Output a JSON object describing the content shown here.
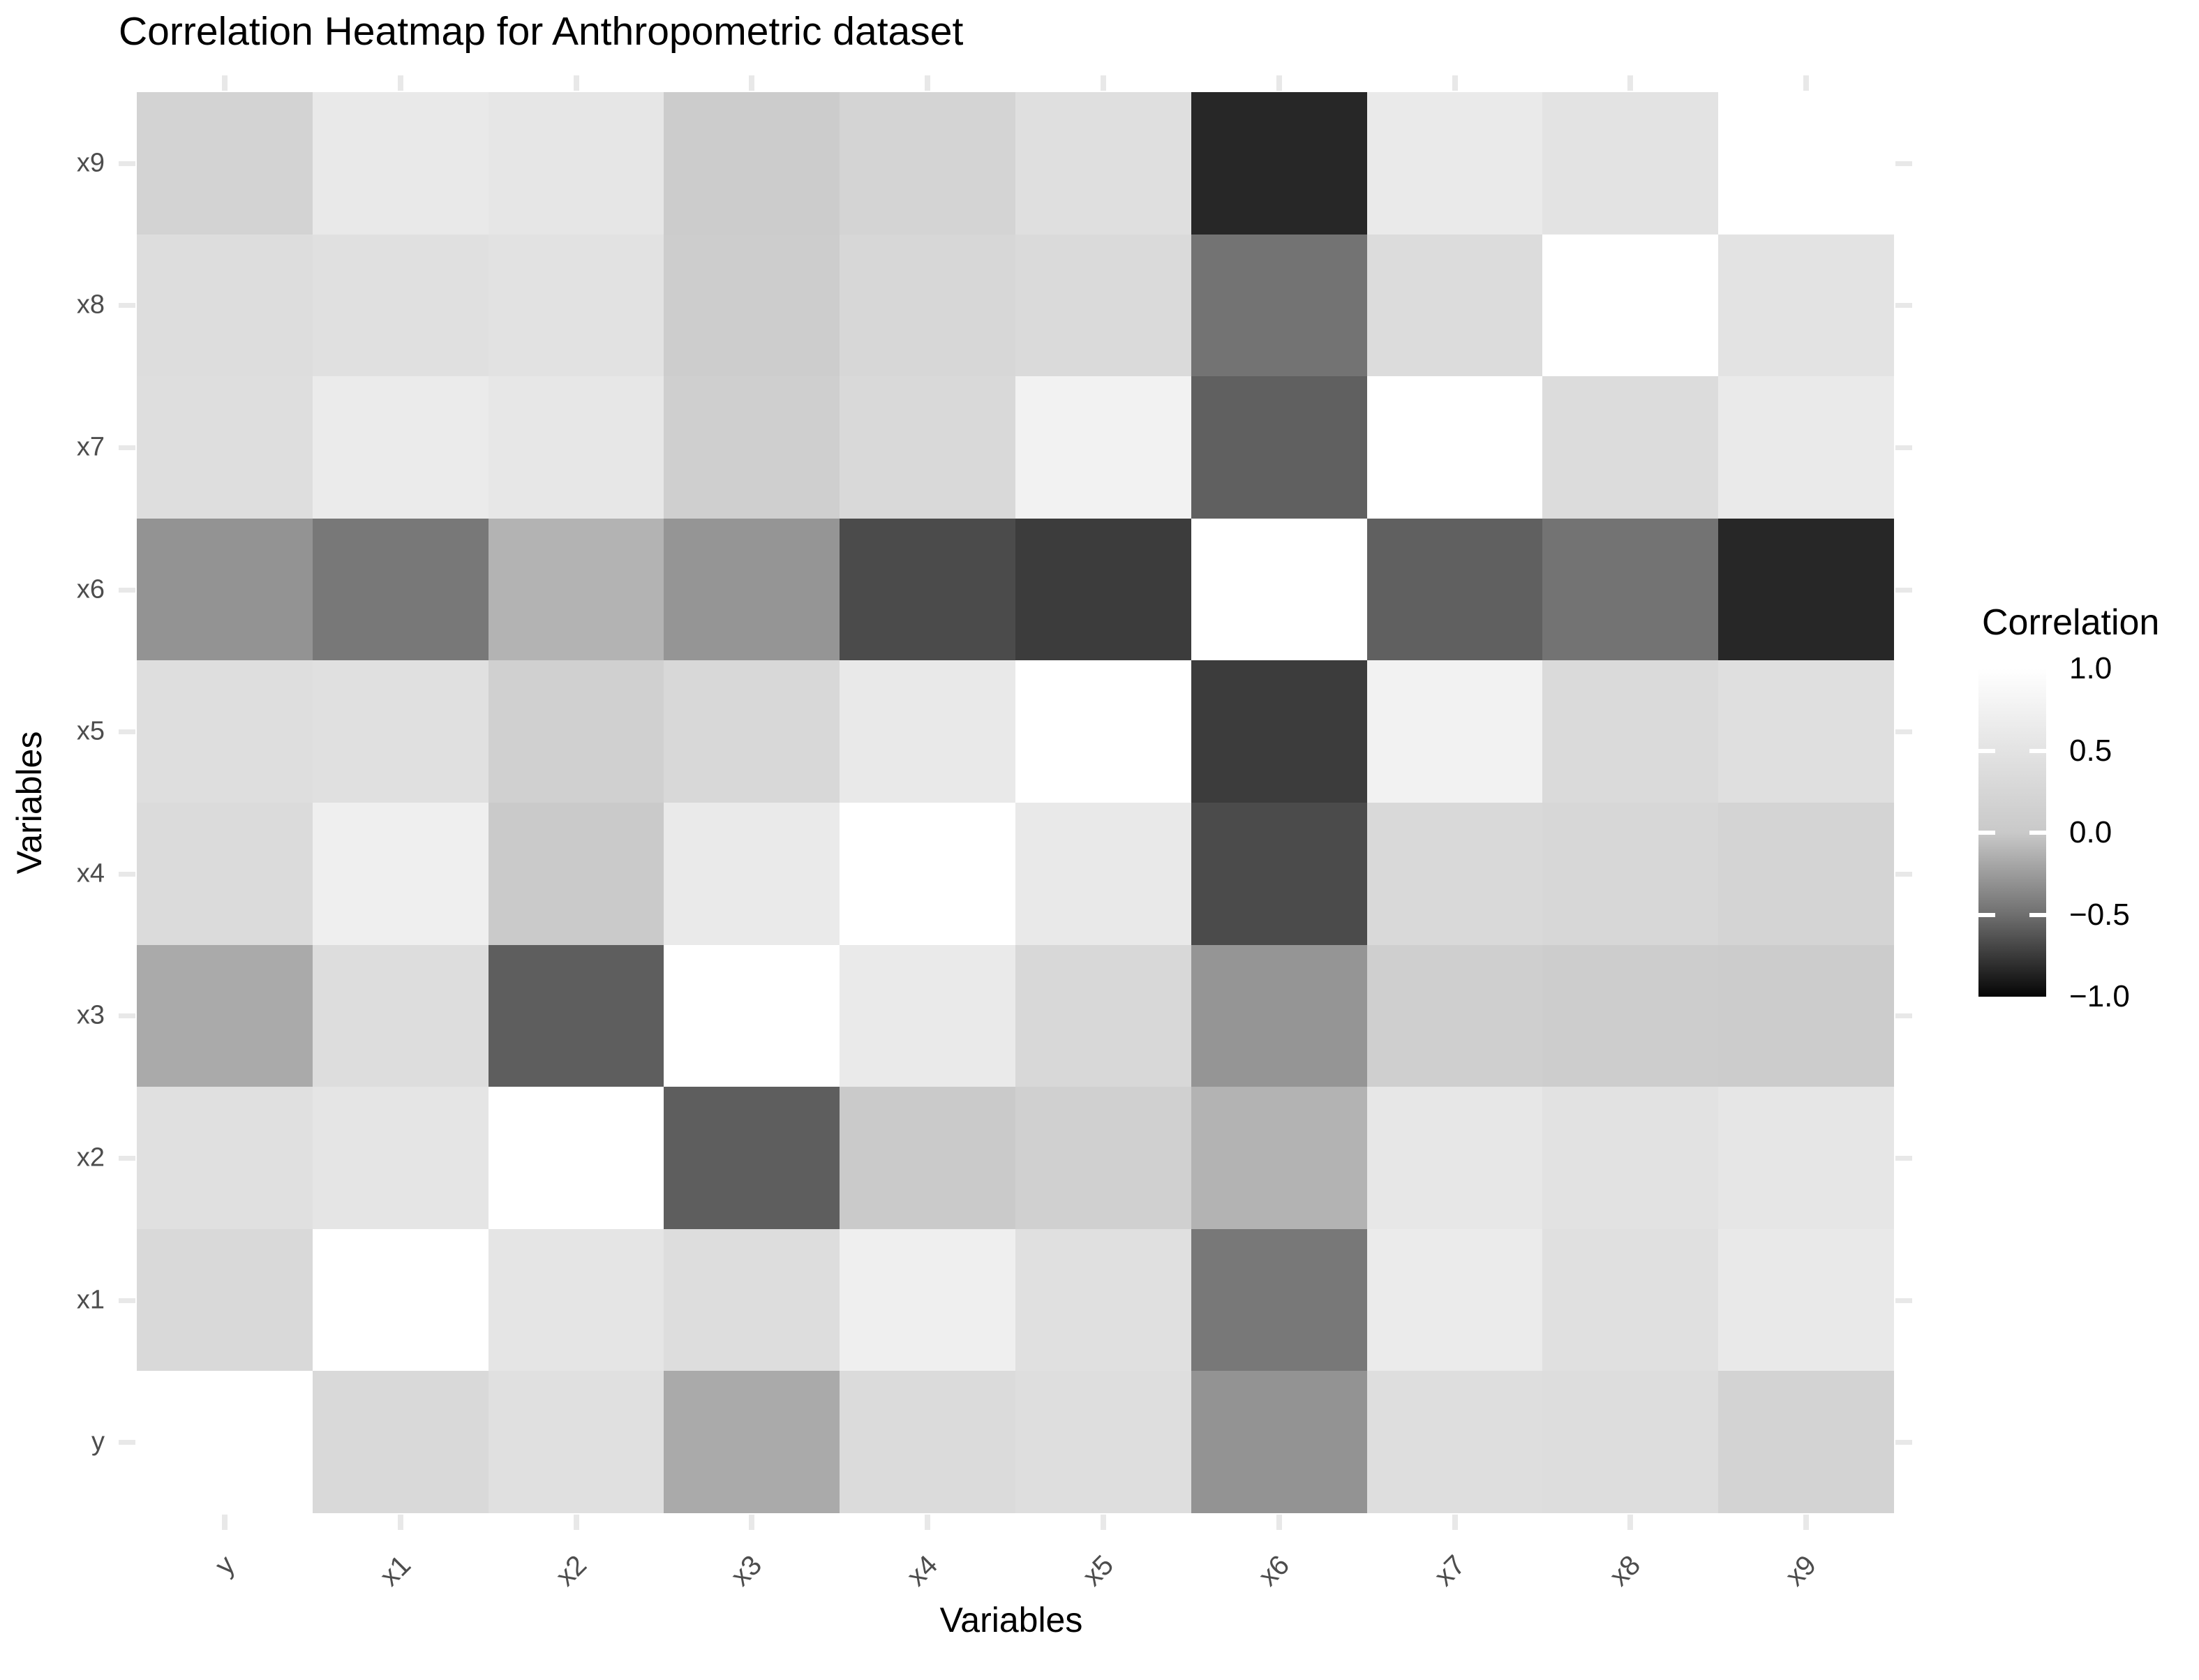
{
  "title": "Correlation Heatmap for Anthropometric dataset",
  "x_axis": {
    "title": "Variables",
    "labels": [
      "y",
      "x1",
      "x2",
      "x3",
      "x4",
      "x5",
      "x6",
      "x7",
      "x8",
      "x9"
    ]
  },
  "y_axis": {
    "title": "Variables",
    "labels": [
      "y",
      "x1",
      "x2",
      "x3",
      "x4",
      "x5",
      "x6",
      "x7",
      "x8",
      "x9"
    ]
  },
  "legend": {
    "title": "Correlation",
    "tick_labels": [
      "1.0",
      "0.5",
      "0.0",
      "−0.5",
      "−1.0"
    ],
    "tick_values": [
      1.0,
      0.5,
      0.0,
      -0.5,
      -1.0
    ],
    "gradient_stops": [
      "#ffffff",
      "#e3e3e3",
      "#c9c9c9",
      "#6f6f6f",
      "#050505"
    ]
  },
  "colors": {
    "background": "#ffffff",
    "tick_mark": "#e8e8e8",
    "axis_text": "#4d4d4d",
    "title_text": "#000000",
    "scale_high": "#ffffff",
    "scale_low": "#050505"
  },
  "chart_data": {
    "type": "heatmap",
    "title": "Correlation Heatmap for Anthropometric dataset",
    "xlabel": "Variables",
    "ylabel": "Variables",
    "legend_label": "Correlation",
    "color_limits": [
      -1,
      1
    ],
    "scale_anchor_values": [
      1,
      0.5,
      0,
      -0.5,
      -1
    ],
    "scale_anchor_grays": [
      255,
      227,
      201,
      111,
      5
    ],
    "variables": [
      "y",
      "x1",
      "x2",
      "x3",
      "x4",
      "x5",
      "x6",
      "x7",
      "x8",
      "x9"
    ],
    "matrix_row_order_note": "rows listed bottom-to-top as on the y axis: y first",
    "matrix": [
      [
        1.0,
        0.31,
        0.45,
        -0.17,
        0.34,
        0.4,
        -0.3,
        0.4,
        0.39,
        0.2
      ],
      [
        0.31,
        1.0,
        0.53,
        0.39,
        0.71,
        0.44,
        -0.45,
        0.64,
        0.44,
        0.61
      ],
      [
        0.45,
        0.53,
        1.0,
        -0.58,
        0.02,
        0.13,
        -0.12,
        0.57,
        0.48,
        0.55
      ],
      [
        -0.17,
        0.39,
        -0.58,
        1.0,
        0.63,
        0.28,
        -0.29,
        0.11,
        0.07,
        0.06
      ],
      [
        0.34,
        0.71,
        0.02,
        0.63,
        1.0,
        0.6,
        -0.67,
        0.3,
        0.26,
        0.22
      ],
      [
        0.4,
        0.44,
        0.13,
        0.28,
        0.6,
        1.0,
        -0.74,
        0.77,
        0.32,
        0.42
      ],
      [
        -0.3,
        -0.45,
        -0.12,
        -0.29,
        -0.67,
        -0.74,
        1.0,
        -0.57,
        -0.48,
        -0.84
      ],
      [
        0.4,
        0.64,
        0.57,
        0.11,
        0.3,
        0.77,
        -0.57,
        1.0,
        0.37,
        0.63
      ],
      [
        0.39,
        0.44,
        0.48,
        0.07,
        0.26,
        0.32,
        -0.48,
        0.37,
        1.0,
        0.5
      ],
      [
        0.2,
        0.61,
        0.55,
        0.06,
        0.22,
        0.42,
        -0.84,
        0.63,
        0.5,
        1.0
      ]
    ]
  }
}
